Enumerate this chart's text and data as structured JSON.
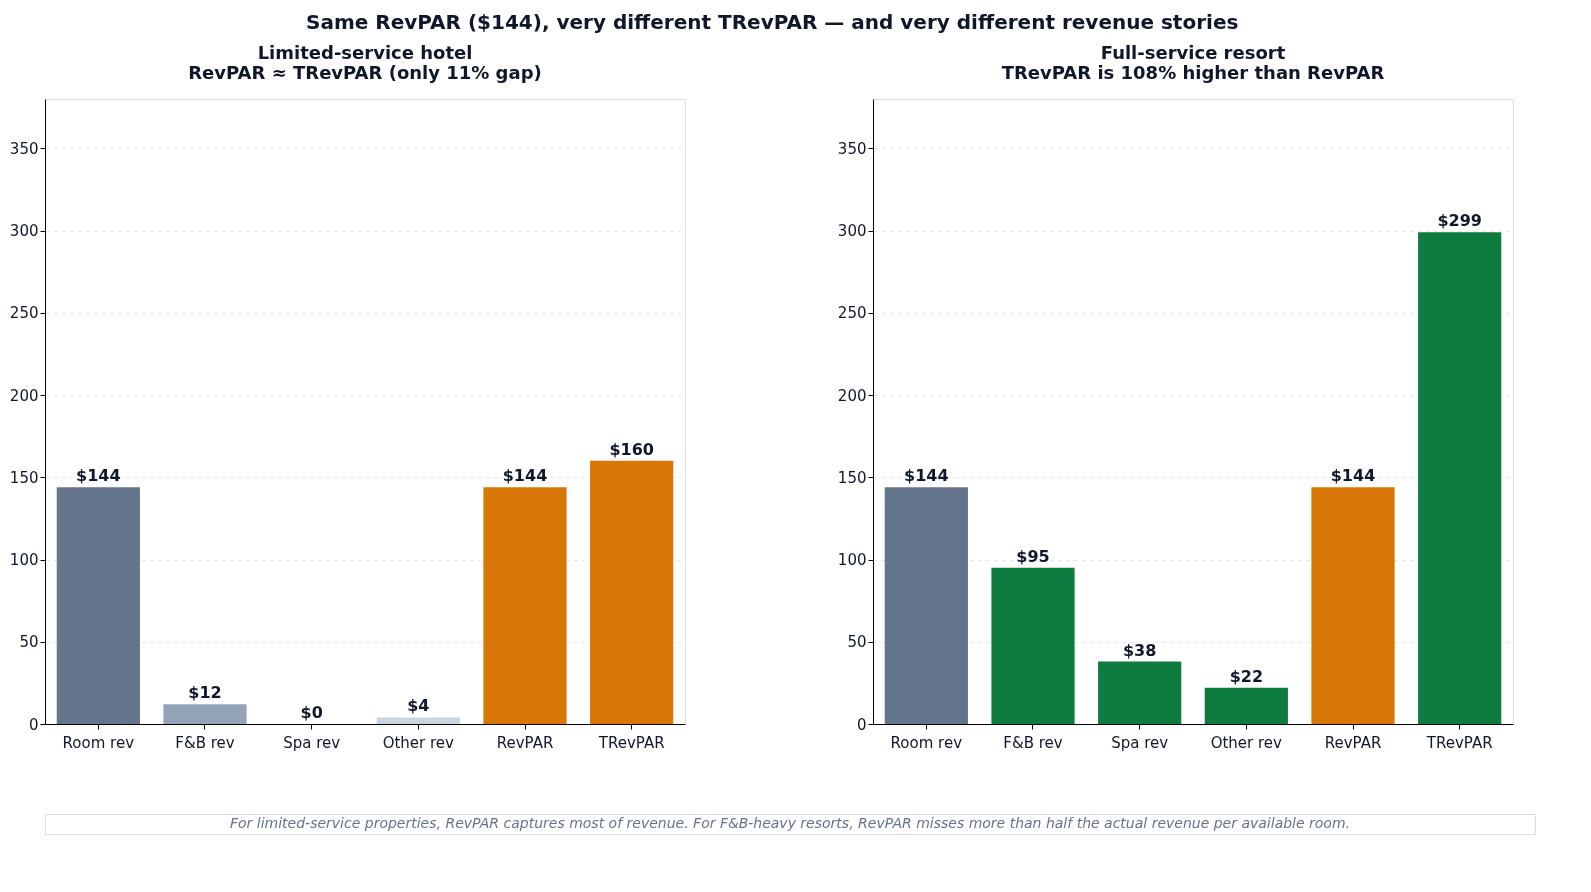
{
  "chart_data": [
    {
      "type": "bar",
      "title": "Limited-service hotel\nRevPAR ≈ TRevPAR (only 11% gap)",
      "categories": [
        "Room rev",
        "F&B rev",
        "Spa rev",
        "Other rev",
        "RevPAR",
        "TRevPAR"
      ],
      "values": [
        144,
        12,
        0,
        4,
        144,
        160
      ],
      "colors": [
        "#64748b",
        "#94a3b8",
        "#cbd5e1",
        "#cbd5e1",
        "#d97706",
        "#d97706"
      ],
      "value_labels": [
        "$144",
        "$12",
        "$0",
        "$4",
        "$144",
        "$160"
      ],
      "ylim": [
        0,
        380
      ],
      "yticks": [
        0,
        50,
        100,
        150,
        200,
        250,
        300,
        350
      ],
      "grid": "y",
      "annotations": [
        "Same RevPAR ($144), very different TRevPAR — and very different revenue stories",
        "For limited-service properties, RevPAR captures most of revenue. For F&B-heavy resorts, RevPAR misses more than half the actual revenue per available room."
      ]
    },
    {
      "type": "bar",
      "title": "Full-service resort\nTRevPAR is 108% higher than RevPAR",
      "categories": [
        "Room rev",
        "F&B rev",
        "Spa rev",
        "Other rev",
        "RevPAR",
        "TRevPAR"
      ],
      "values": [
        144,
        95,
        38,
        22,
        144,
        299
      ],
      "colors": [
        "#64748b",
        "#0e7c3f",
        "#0e7c3f",
        "#0e7c3f",
        "#d97706",
        "#0e7c3f"
      ],
      "value_labels": [
        "$144",
        "$95",
        "$38",
        "$22",
        "$144",
        "$299"
      ],
      "ylim": [
        0,
        380
      ],
      "yticks": [
        0,
        50,
        100,
        150,
        200,
        250,
        300,
        350
      ],
      "grid": "y"
    }
  ]
}
